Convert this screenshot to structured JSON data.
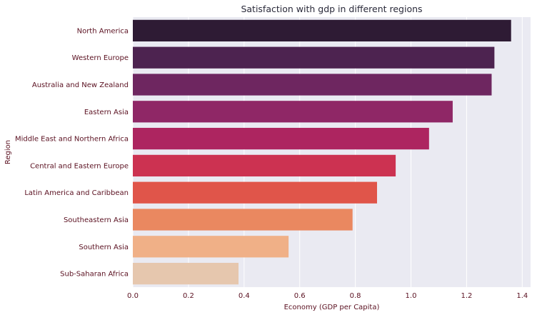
{
  "chart_data": {
    "type": "bar",
    "orientation": "horizontal",
    "title": "Satisfaction with gdp in different regions",
    "xlabel": "Economy (GDP per Capita)",
    "ylabel": "Region",
    "xlim": [
      0,
      1.43
    ],
    "xticks": [
      "0.0",
      "0.2",
      "0.4",
      "0.6",
      "0.8",
      "1.0",
      "1.2",
      "1.4"
    ],
    "grid": true,
    "categories": [
      "North America",
      "Western Europe",
      "Australia and New Zealand",
      "Eastern Asia",
      "Middle East and Northern Africa",
      "Central and Eastern Europe",
      "Latin America and Caribbean",
      "Southeastern Asia",
      "Southern Asia",
      "Sub-Saharan Africa"
    ],
    "values": [
      1.36,
      1.3,
      1.29,
      1.15,
      1.065,
      0.945,
      0.878,
      0.79,
      0.56,
      0.38
    ],
    "colors": [
      "#2e1b34",
      "#4d2350",
      "#6e2660",
      "#8f2766",
      "#ad2560",
      "#cc3251",
      "#e0554a",
      "#ea8860",
      "#f0b087",
      "#e6c7ae"
    ],
    "plot_background": "#eaeaf2",
    "grid_color": "#ffffff",
    "label_color": "#5a1020"
  }
}
